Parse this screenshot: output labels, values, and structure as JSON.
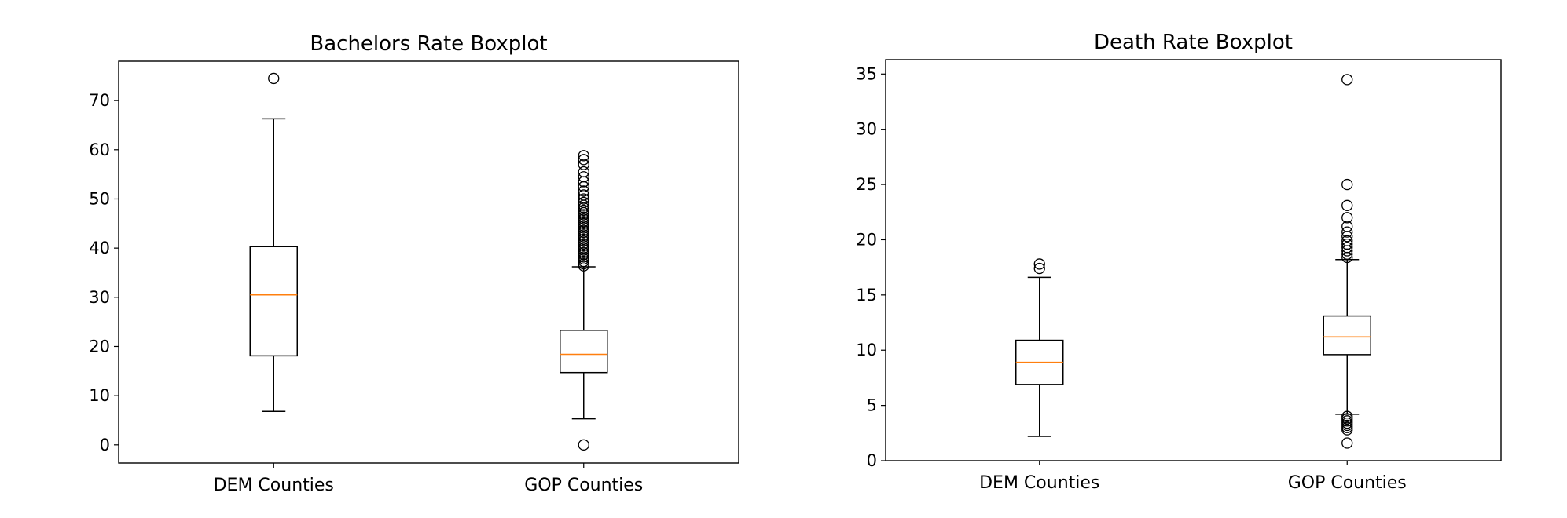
{
  "chart_data": [
    {
      "type": "box",
      "title": "Bachelors Rate Boxplot",
      "xlabel": "",
      "ylabel": "",
      "ylim": [
        -3.7,
        78
      ],
      "yticks": [
        0,
        10,
        20,
        30,
        40,
        50,
        60,
        70
      ],
      "categories": [
        "DEM Counties",
        "GOP Counties"
      ],
      "grid": false,
      "boxes": [
        {
          "category": "DEM Counties",
          "whisker_low": 6.8,
          "q1": 18.1,
          "median": 30.5,
          "q3": 40.3,
          "whisker_high": 66.3,
          "outliers": [
            74.5
          ]
        },
        {
          "category": "GOP Counties",
          "whisker_low": 5.3,
          "q1": 14.7,
          "median": 18.4,
          "q3": 23.3,
          "whisker_high": 36.2,
          "outliers": [
            0.0,
            36.4,
            36.8,
            37.3,
            37.8,
            38.2,
            38.7,
            39.1,
            39.6,
            40.0,
            40.5,
            40.9,
            41.4,
            41.8,
            42.3,
            42.7,
            43.2,
            43.6,
            44.1,
            44.5,
            45.0,
            45.4,
            45.9,
            46.3,
            46.8,
            47.2,
            47.7,
            48.2,
            48.7,
            49.3,
            50.0,
            50.8,
            51.6,
            52.5,
            53.5,
            54.5,
            55.5,
            57.0,
            58.0,
            58.8
          ]
        }
      ]
    },
    {
      "type": "box",
      "title": "Death Rate Boxplot",
      "xlabel": "",
      "ylabel": "",
      "ylim": [
        0,
        36.3
      ],
      "yticks": [
        0,
        5,
        10,
        15,
        20,
        25,
        30,
        35
      ],
      "categories": [
        "DEM Counties",
        "GOP Counties"
      ],
      "grid": false,
      "boxes": [
        {
          "category": "DEM Counties",
          "whisker_low": 2.2,
          "q1": 6.9,
          "median": 8.9,
          "q3": 10.9,
          "whisker_high": 16.6,
          "outliers": [
            17.4,
            17.8
          ]
        },
        {
          "category": "GOP Counties",
          "whisker_low": 4.2,
          "q1": 9.6,
          "median": 11.2,
          "q3": 13.1,
          "whisker_high": 18.2,
          "outliers": [
            1.6,
            2.8,
            3.0,
            3.2,
            3.4,
            3.6,
            3.8,
            4.0,
            18.4,
            18.7,
            19.0,
            19.3,
            19.6,
            19.9,
            20.3,
            20.7,
            21.2,
            22.0,
            23.1,
            25.0,
            34.5
          ]
        }
      ]
    }
  ],
  "colors": {
    "box": "#000000",
    "median": "#ff7f0e",
    "background": "#ffffff"
  }
}
